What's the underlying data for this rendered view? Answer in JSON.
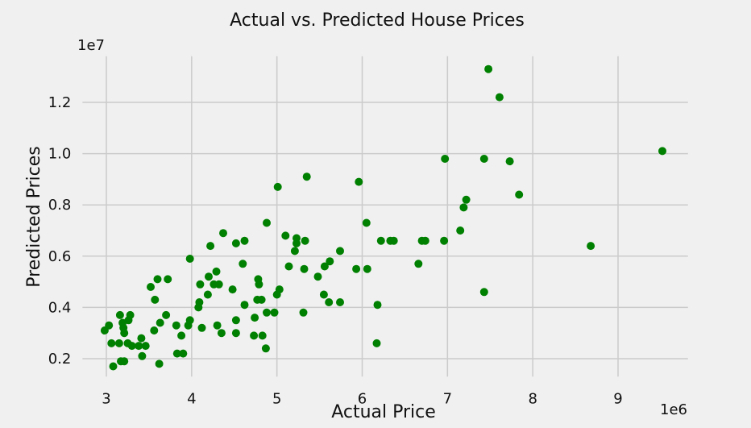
{
  "chart_data": {
    "type": "scatter",
    "title": "Actual vs. Predicted House Prices",
    "xlabel": "Actual Price",
    "ylabel": "Predicted Prices",
    "x_offset_label": "1e6",
    "y_offset_label": "1e7",
    "x_ticks": [
      3,
      4,
      5,
      6,
      7,
      8,
      9
    ],
    "y_ticks": [
      0.2,
      0.4,
      0.6,
      0.8,
      1.0,
      1.2
    ],
    "y_tick_labels": [
      "0.2",
      "0.4",
      "0.6",
      "0.8",
      "1.0",
      "1.2"
    ],
    "xlim": [
      2.72,
      9.82
    ],
    "ylim": [
      0.13,
      1.38
    ],
    "grid": true,
    "point_color": "#008000",
    "background_color": "#f0f0f0",
    "series": [
      {
        "points": [
          [
            2.98,
            0.31
          ],
          [
            3.03,
            0.33
          ],
          [
            3.06,
            0.26
          ],
          [
            3.08,
            0.17
          ],
          [
            3.15,
            0.26
          ],
          [
            3.16,
            0.37
          ],
          [
            3.17,
            0.19
          ],
          [
            3.19,
            0.34
          ],
          [
            3.2,
            0.32
          ],
          [
            3.21,
            0.3
          ],
          [
            3.21,
            0.19
          ],
          [
            3.25,
            0.26
          ],
          [
            3.26,
            0.35
          ],
          [
            3.28,
            0.37
          ],
          [
            3.3,
            0.25
          ],
          [
            3.38,
            0.25
          ],
          [
            3.41,
            0.28
          ],
          [
            3.42,
            0.21
          ],
          [
            3.46,
            0.25
          ],
          [
            3.52,
            0.48
          ],
          [
            3.56,
            0.31
          ],
          [
            3.57,
            0.43
          ],
          [
            3.6,
            0.51
          ],
          [
            3.62,
            0.18
          ],
          [
            3.63,
            0.34
          ],
          [
            3.7,
            0.37
          ],
          [
            3.72,
            0.51
          ],
          [
            3.82,
            0.33
          ],
          [
            3.83,
            0.22
          ],
          [
            3.88,
            0.29
          ],
          [
            3.9,
            0.22
          ],
          [
            3.96,
            0.33
          ],
          [
            3.98,
            0.35
          ],
          [
            3.98,
            0.59
          ],
          [
            4.08,
            0.4
          ],
          [
            4.09,
            0.42
          ],
          [
            4.1,
            0.49
          ],
          [
            4.12,
            0.32
          ],
          [
            4.19,
            0.45
          ],
          [
            4.2,
            0.52
          ],
          [
            4.22,
            0.64
          ],
          [
            4.26,
            0.49
          ],
          [
            4.29,
            0.54
          ],
          [
            4.3,
            0.33
          ],
          [
            4.32,
            0.49
          ],
          [
            4.35,
            0.3
          ],
          [
            4.37,
            0.69
          ],
          [
            4.48,
            0.47
          ],
          [
            4.52,
            0.3
          ],
          [
            4.52,
            0.35
          ],
          [
            4.52,
            0.65
          ],
          [
            4.6,
            0.57
          ],
          [
            4.62,
            0.41
          ],
          [
            4.62,
            0.66
          ],
          [
            4.73,
            0.29
          ],
          [
            4.74,
            0.36
          ],
          [
            4.77,
            0.43
          ],
          [
            4.78,
            0.51
          ],
          [
            4.79,
            0.49
          ],
          [
            4.82,
            0.43
          ],
          [
            4.83,
            0.29
          ],
          [
            4.87,
            0.24
          ],
          [
            4.88,
            0.38
          ],
          [
            4.88,
            0.73
          ],
          [
            4.97,
            0.38
          ],
          [
            5.0,
            0.45
          ],
          [
            5.01,
            0.87
          ],
          [
            5.03,
            0.47
          ],
          [
            5.1,
            0.68
          ],
          [
            5.14,
            0.56
          ],
          [
            5.21,
            0.62
          ],
          [
            5.23,
            0.67
          ],
          [
            5.23,
            0.65
          ],
          [
            5.31,
            0.38
          ],
          [
            5.32,
            0.55
          ],
          [
            5.33,
            0.66
          ],
          [
            5.35,
            0.91
          ],
          [
            5.48,
            0.52
          ],
          [
            5.55,
            0.45
          ],
          [
            5.56,
            0.56
          ],
          [
            5.61,
            0.42
          ],
          [
            5.62,
            0.58
          ],
          [
            5.74,
            0.42
          ],
          [
            5.74,
            0.62
          ],
          [
            5.93,
            0.55
          ],
          [
            5.96,
            0.89
          ],
          [
            6.05,
            0.73
          ],
          [
            6.06,
            0.55
          ],
          [
            6.17,
            0.26
          ],
          [
            6.18,
            0.41
          ],
          [
            6.22,
            0.66
          ],
          [
            6.33,
            0.66
          ],
          [
            6.37,
            0.66
          ],
          [
            6.66,
            0.57
          ],
          [
            6.7,
            0.66
          ],
          [
            6.74,
            0.66
          ],
          [
            6.96,
            0.66
          ],
          [
            6.97,
            0.98
          ],
          [
            7.15,
            0.7
          ],
          [
            7.19,
            0.79
          ],
          [
            7.22,
            0.82
          ],
          [
            7.43,
            0.46
          ],
          [
            7.43,
            0.98
          ],
          [
            7.48,
            1.33
          ],
          [
            7.61,
            1.22
          ],
          [
            7.73,
            0.97
          ],
          [
            7.84,
            0.84
          ],
          [
            8.68,
            0.64
          ],
          [
            9.52,
            1.01
          ]
        ]
      }
    ]
  }
}
